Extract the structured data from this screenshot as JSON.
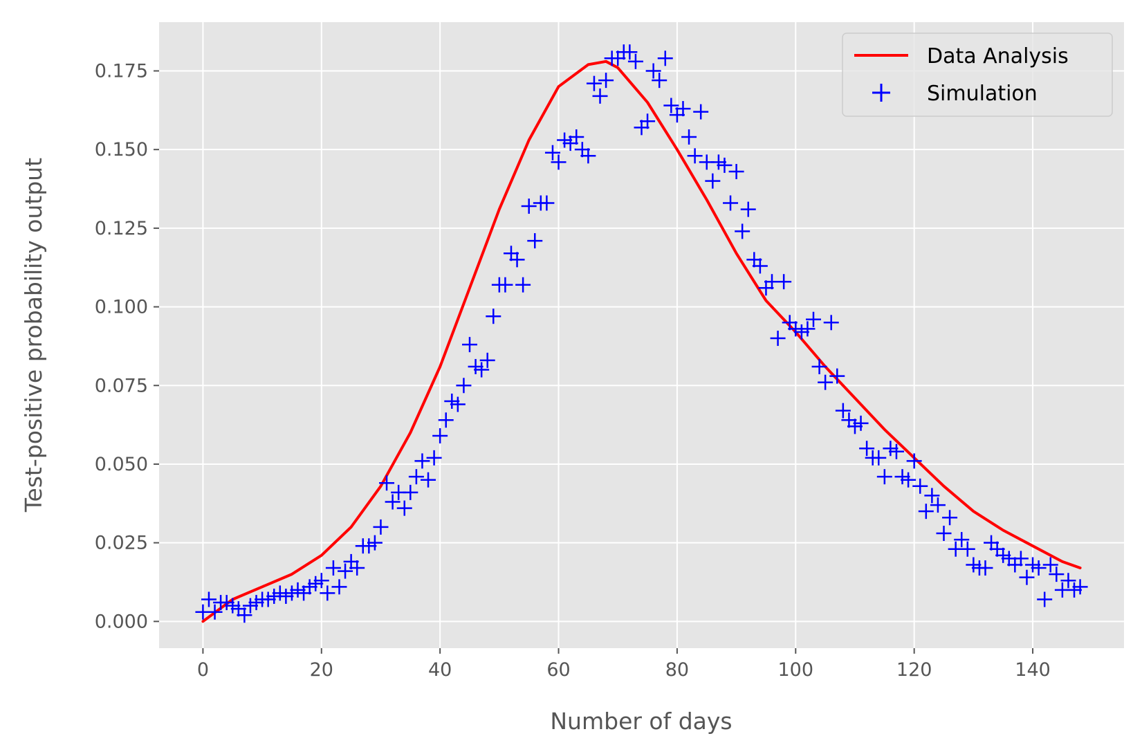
{
  "chart_data": {
    "type": "line",
    "title": "",
    "xlabel": "Number of days",
    "ylabel": "Test-positive probability output",
    "xlim": [
      -7.4,
      155.4
    ],
    "ylim": [
      -0.0085,
      0.1905
    ],
    "x_ticks": [
      0,
      20,
      40,
      60,
      80,
      100,
      120,
      140
    ],
    "x_tick_labels": [
      "0",
      "20",
      "40",
      "60",
      "80",
      "100",
      "120",
      "140"
    ],
    "y_ticks": [
      0.0,
      0.025,
      0.05,
      0.075,
      0.1,
      0.125,
      0.15,
      0.175
    ],
    "y_tick_labels": [
      "0.000",
      "0.025",
      "0.050",
      "0.075",
      "0.100",
      "0.125",
      "0.150",
      "0.175"
    ],
    "grid": true,
    "legend_position": "top-right",
    "colors": {
      "plot_background": "#e5e5e5",
      "grid": "#ffffff",
      "line": "#ff0000",
      "markers": "#0000ff"
    },
    "series": [
      {
        "name": "Data Analysis",
        "kind": "line",
        "color": "#ff0000",
        "x": [
          0,
          5,
          10,
          15,
          20,
          25,
          30,
          35,
          40,
          45,
          50,
          55,
          60,
          65,
          68,
          70,
          75,
          80,
          85,
          90,
          95,
          100,
          105,
          110,
          115,
          120,
          125,
          130,
          135,
          140,
          145,
          148
        ],
        "y": [
          0.0,
          0.007,
          0.011,
          0.015,
          0.021,
          0.03,
          0.043,
          0.06,
          0.081,
          0.106,
          0.131,
          0.153,
          0.17,
          0.177,
          0.178,
          0.176,
          0.165,
          0.15,
          0.134,
          0.117,
          0.102,
          0.092,
          0.081,
          0.071,
          0.061,
          0.052,
          0.043,
          0.035,
          0.029,
          0.024,
          0.019,
          0.017
        ]
      },
      {
        "name": "Simulation",
        "kind": "scatter",
        "marker": "+",
        "color": "#0000ff",
        "x": [
          0,
          1,
          2,
          3,
          4,
          5,
          6,
          7,
          8,
          9,
          10,
          11,
          12,
          13,
          14,
          15,
          16,
          17,
          18,
          19,
          20,
          21,
          22,
          23,
          24,
          25,
          26,
          27,
          28,
          29,
          30,
          31,
          32,
          33,
          34,
          35,
          36,
          37,
          38,
          39,
          40,
          41,
          42,
          43,
          44,
          45,
          46,
          47,
          48,
          49,
          50,
          51,
          52,
          53,
          54,
          55,
          56,
          57,
          58,
          59,
          60,
          61,
          62,
          63,
          64,
          65,
          66,
          67,
          68,
          69,
          70,
          71,
          72,
          73,
          74,
          75,
          76,
          77,
          78,
          79,
          80,
          81,
          82,
          83,
          84,
          85,
          86,
          87,
          88,
          89,
          90,
          91,
          92,
          93,
          94,
          95,
          96,
          97,
          98,
          99,
          100,
          101,
          102,
          103,
          104,
          105,
          106,
          107,
          108,
          109,
          110,
          111,
          112,
          113,
          114,
          115,
          116,
          117,
          118,
          119,
          120,
          121,
          122,
          123,
          124,
          125,
          126,
          127,
          128,
          129,
          130,
          131,
          132,
          133,
          134,
          135,
          136,
          137,
          138,
          139,
          140,
          141,
          142,
          143,
          144,
          145,
          146,
          147,
          148
        ],
        "y": [
          0.003,
          0.007,
          0.003,
          0.006,
          0.006,
          0.005,
          0.004,
          0.002,
          0.005,
          0.006,
          0.007,
          0.007,
          0.008,
          0.009,
          0.008,
          0.009,
          0.01,
          0.009,
          0.011,
          0.012,
          0.013,
          0.009,
          0.017,
          0.011,
          0.016,
          0.019,
          0.017,
          0.024,
          0.024,
          0.025,
          0.03,
          0.044,
          0.038,
          0.041,
          0.036,
          0.041,
          0.046,
          0.051,
          0.045,
          0.052,
          0.059,
          0.064,
          0.07,
          0.069,
          0.075,
          0.088,
          0.081,
          0.08,
          0.083,
          0.097,
          0.107,
          0.107,
          0.117,
          0.115,
          0.107,
          0.132,
          0.121,
          0.133,
          0.133,
          0.149,
          0.146,
          0.153,
          0.152,
          0.154,
          0.15,
          0.148,
          0.171,
          0.167,
          0.172,
          0.179,
          0.179,
          0.181,
          0.181,
          0.178,
          0.157,
          0.159,
          0.175,
          0.172,
          0.179,
          0.164,
          0.161,
          0.163,
          0.154,
          0.148,
          0.162,
          0.146,
          0.14,
          0.146,
          0.145,
          0.133,
          0.143,
          0.124,
          0.131,
          0.115,
          0.113,
          0.106,
          0.108,
          0.09,
          0.108,
          0.095,
          0.093,
          0.092,
          0.093,
          0.096,
          0.081,
          0.076,
          0.095,
          0.078,
          0.067,
          0.064,
          0.062,
          0.063,
          0.055,
          0.052,
          0.052,
          0.046,
          0.055,
          0.054,
          0.046,
          0.045,
          0.051,
          0.043,
          0.035,
          0.04,
          0.037,
          0.028,
          0.033,
          0.023,
          0.026,
          0.023,
          0.018,
          0.017,
          0.017,
          0.025,
          0.023,
          0.021,
          0.02,
          0.018,
          0.02,
          0.014,
          0.018,
          0.017,
          0.007,
          0.018,
          0.015,
          0.01,
          0.013,
          0.01,
          0.011
        ]
      }
    ]
  }
}
